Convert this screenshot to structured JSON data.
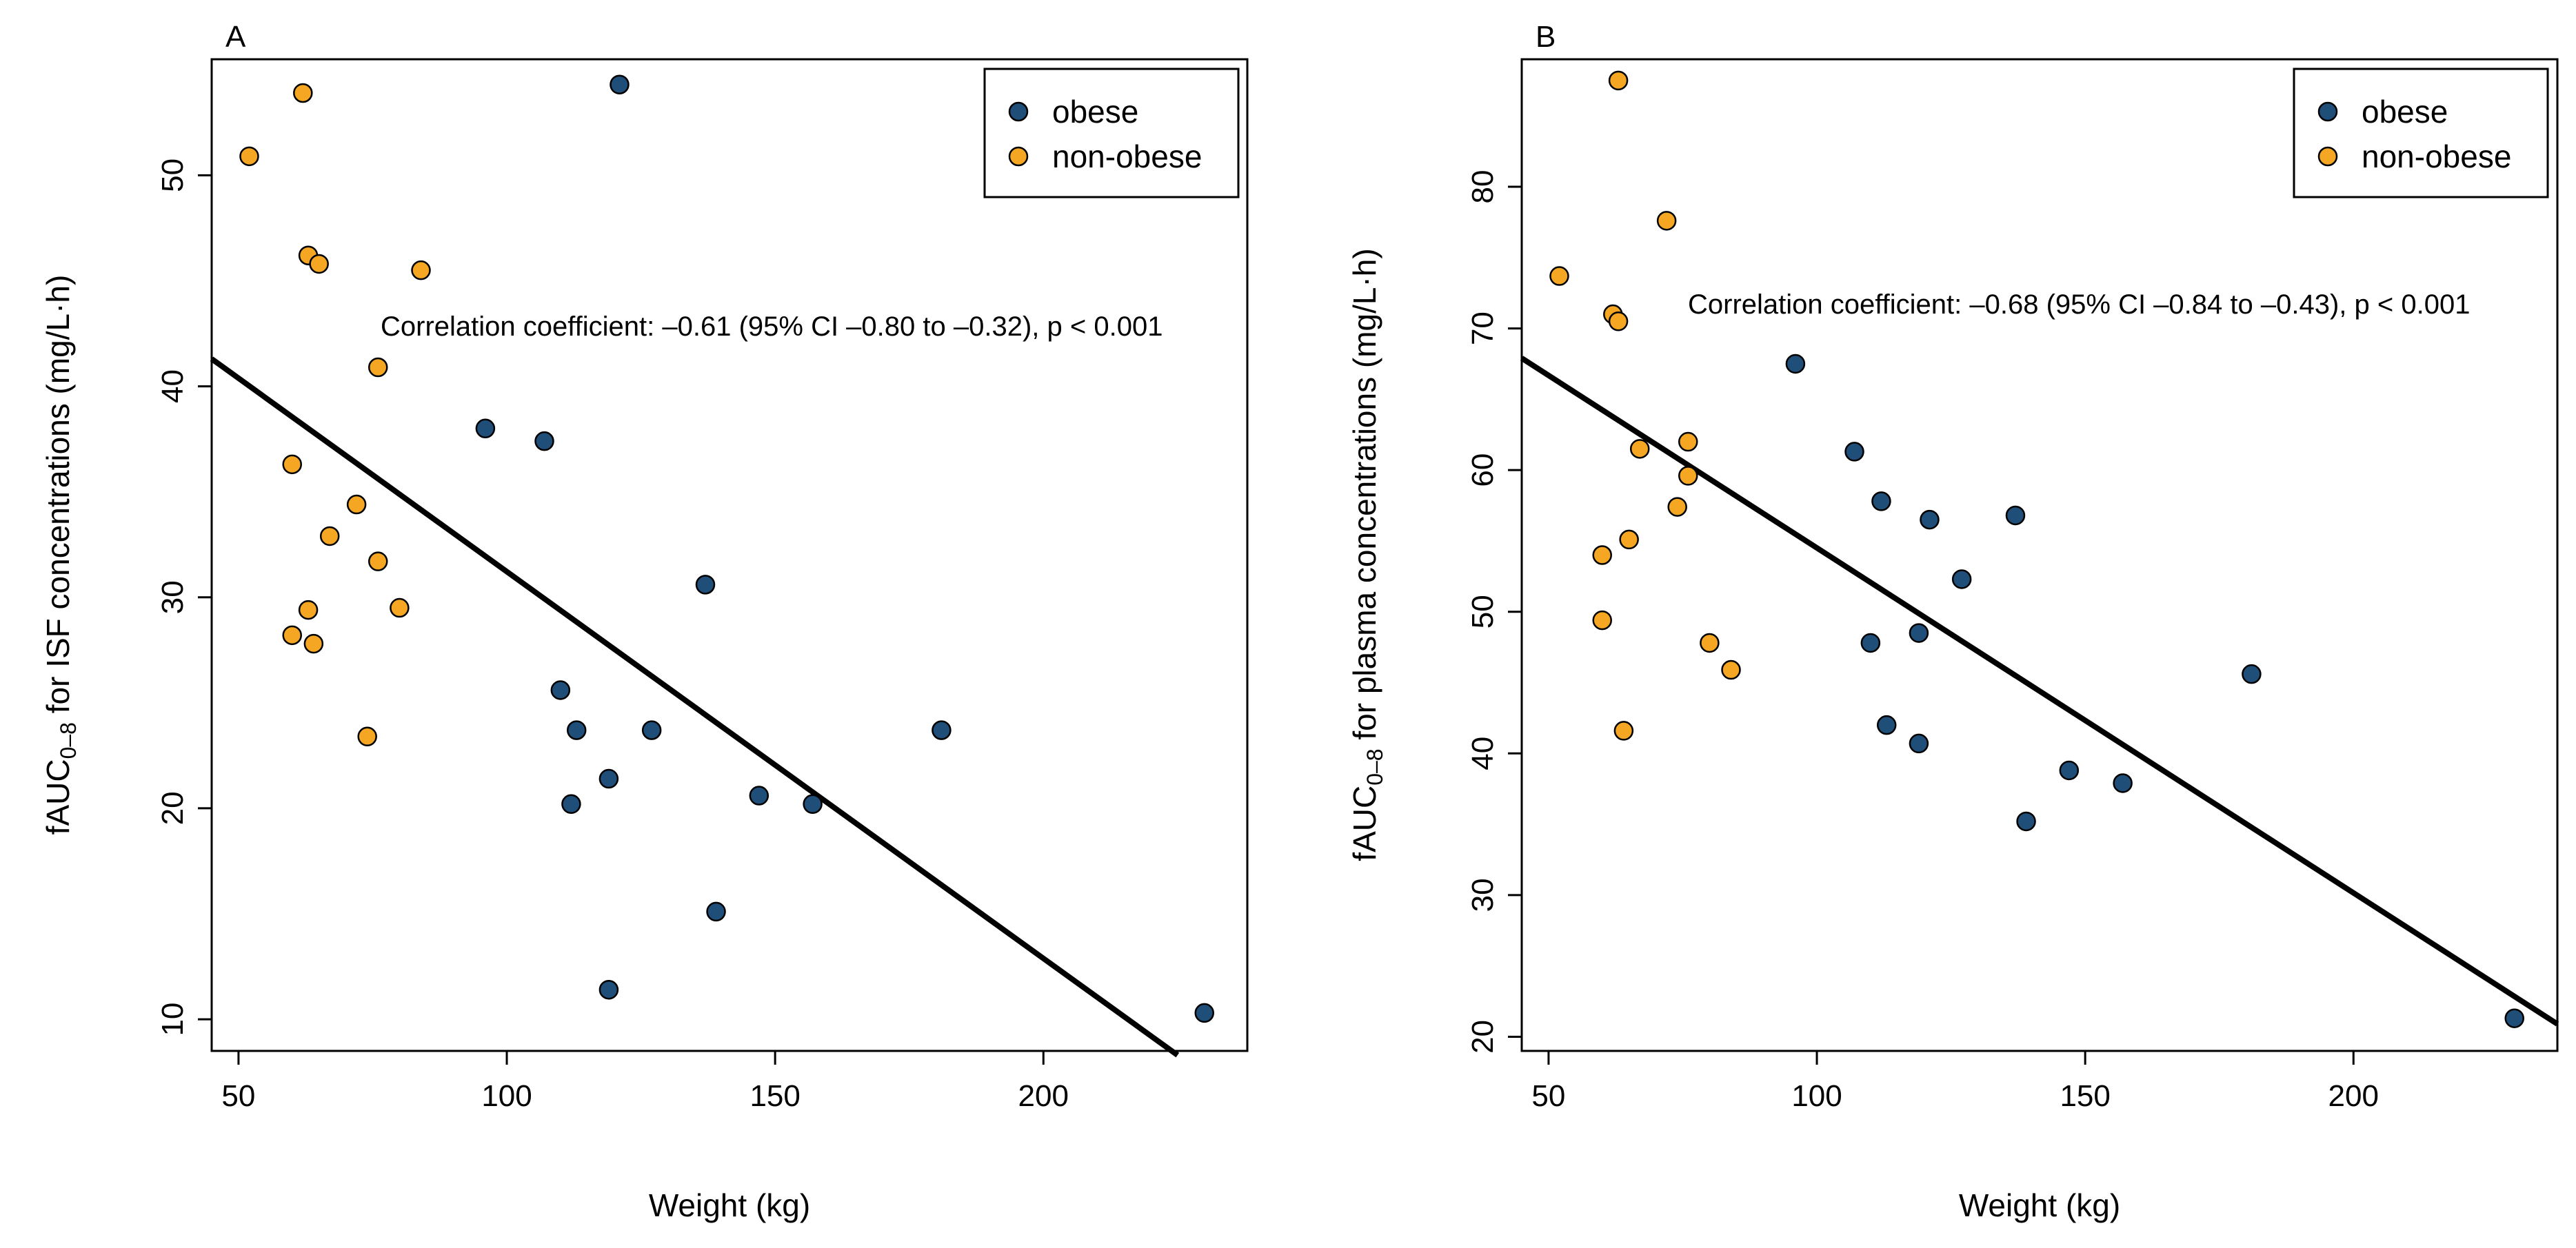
{
  "colors": {
    "obese": "#1f4e79",
    "non_obese": "#f5a623",
    "line": "#000000"
  },
  "chart_data": [
    {
      "type": "scatter",
      "panel_label": "A",
      "xlabel": "Weight (kg)",
      "ylabel_main": "fAUC",
      "ylabel_sub": "0–8",
      "ylabel_rest": " for ISF concentrations  (mg/L·h)",
      "xlim": [
        45,
        238
      ],
      "ylim": [
        8.5,
        55.5
      ],
      "xticks": [
        50,
        100,
        150,
        200
      ],
      "yticks": [
        10,
        20,
        30,
        40,
        50
      ],
      "legend": {
        "position": "top-right",
        "entries": [
          "obese",
          "non-obese"
        ]
      },
      "annotation": "Correlation coefficient: –0.61 (95% CI –0.80 to –0.32), p < 0.001",
      "regression": {
        "x0": 45,
        "y0": 41.3,
        "x1": 225,
        "y1": 8.3
      },
      "series": [
        {
          "name": "obese",
          "points": [
            [
              96,
              38.0
            ],
            [
              107,
              37.4
            ],
            [
              121,
              54.3
            ],
            [
              137,
              30.6
            ],
            [
              110,
              25.6
            ],
            [
              113,
              23.7
            ],
            [
              127,
              23.7
            ],
            [
              112,
              20.2
            ],
            [
              119,
              21.4
            ],
            [
              147,
              20.6
            ],
            [
              157,
              20.2
            ],
            [
              181,
              23.7
            ],
            [
              139,
              15.1
            ],
            [
              119,
              11.4
            ],
            [
              230,
              10.3
            ]
          ]
        },
        {
          "name": "non-obese",
          "points": [
            [
              52,
              50.9
            ],
            [
              62,
              53.9
            ],
            [
              63,
              46.2
            ],
            [
              65,
              45.8
            ],
            [
              84,
              45.5
            ],
            [
              76,
              40.9
            ],
            [
              60,
              36.3
            ],
            [
              72,
              34.4
            ],
            [
              67,
              32.9
            ],
            [
              76,
              31.7
            ],
            [
              80,
              29.5
            ],
            [
              63,
              29.4
            ],
            [
              60,
              28.2
            ],
            [
              64,
              27.8
            ],
            [
              74,
              23.4
            ]
          ]
        }
      ]
    },
    {
      "type": "scatter",
      "panel_label": "B",
      "xlabel": "Weight (kg)",
      "ylabel_main": "fAUC",
      "ylabel_sub": "0–8",
      "ylabel_rest": " for plasma concentrations  (mg/L·h)",
      "xlim": [
        45,
        238
      ],
      "ylim": [
        19,
        89
      ],
      "xticks": [
        50,
        100,
        150,
        200
      ],
      "yticks": [
        20,
        30,
        40,
        50,
        60,
        70,
        80
      ],
      "legend": {
        "position": "top-right",
        "entries": [
          "obese",
          "non-obese"
        ]
      },
      "annotation": "Correlation coefficient: –0.68 (95% CI –0.84 to –0.43), p < 0.001",
      "regression": {
        "x0": 45,
        "y0": 67.9,
        "x1": 238,
        "y1": 20.9
      },
      "series": [
        {
          "name": "obese",
          "points": [
            [
              96,
              67.5
            ],
            [
              107,
              61.3
            ],
            [
              112,
              57.8
            ],
            [
              121,
              56.5
            ],
            [
              137,
              56.8
            ],
            [
              127,
              52.3
            ],
            [
              119,
              48.5
            ],
            [
              110,
              47.8
            ],
            [
              113,
              42.0
            ],
            [
              119,
              40.7
            ],
            [
              147,
              38.8
            ],
            [
              157,
              37.9
            ],
            [
              139,
              35.2
            ],
            [
              181,
              45.6
            ],
            [
              230,
              21.3
            ]
          ]
        },
        {
          "name": "non-obese",
          "points": [
            [
              63,
              87.5
            ],
            [
              72,
              77.6
            ],
            [
              52,
              73.7
            ],
            [
              62,
              71.0
            ],
            [
              63,
              70.5
            ],
            [
              67,
              61.5
            ],
            [
              76,
              62.0
            ],
            [
              76,
              59.6
            ],
            [
              74,
              57.4
            ],
            [
              65,
              55.1
            ],
            [
              60,
              54.0
            ],
            [
              60,
              49.4
            ],
            [
              80,
              47.8
            ],
            [
              84,
              45.9
            ],
            [
              64,
              41.6
            ]
          ]
        }
      ]
    }
  ]
}
